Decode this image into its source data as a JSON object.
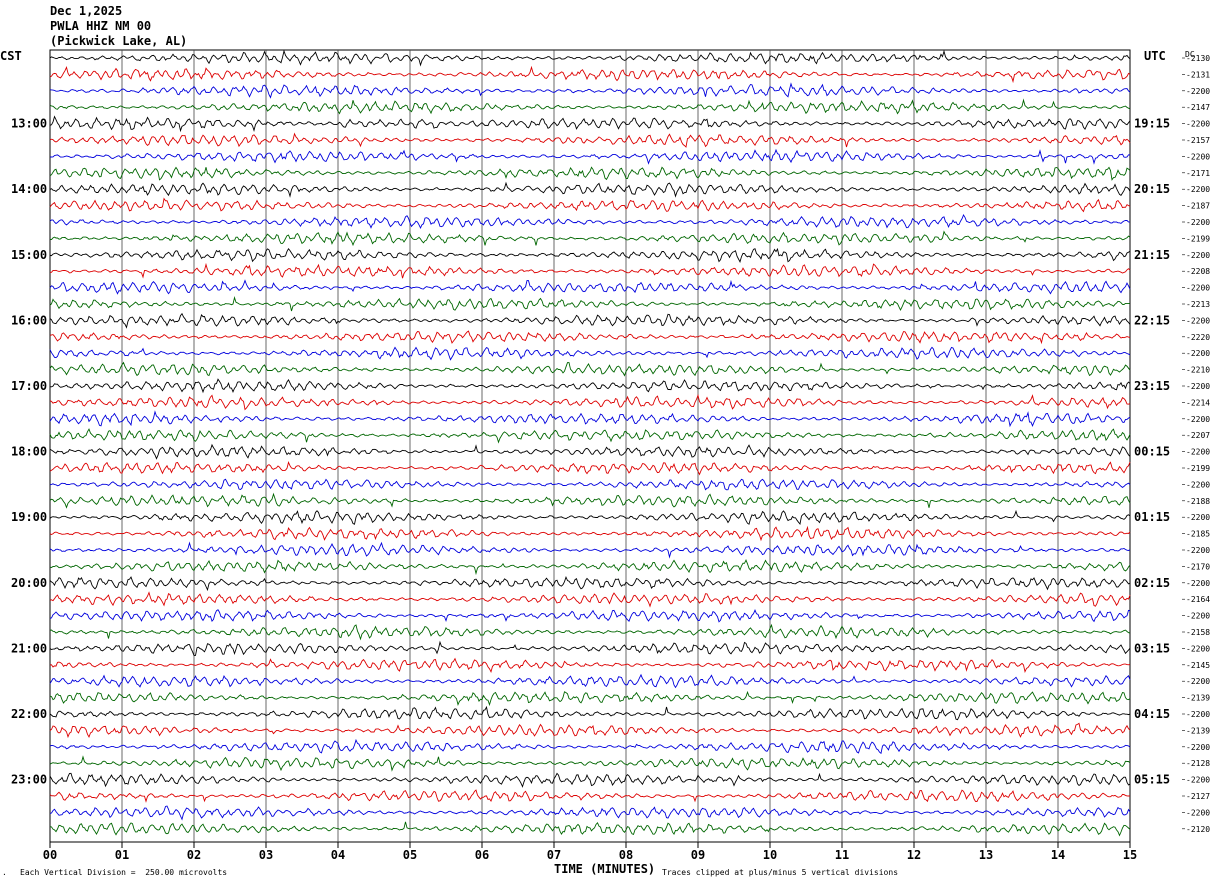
{
  "header": {
    "date": "Dec 1,2025",
    "station": "PWLA HHZ NM 00",
    "location": "(Pickwick Lake, AL)"
  },
  "left_timezone": "CST",
  "right_timezone": "UTC",
  "dc_label": "DC",
  "x_axis_title": "TIME (MINUTES)",
  "footer_left": "Each Vertical Division =  250.00 microvolts",
  "footer_right": "Traces clipped at plus/minus 5 vertical divisions",
  "colors": {
    "black": "#000000",
    "red": "#dd0000",
    "blue": "#0000dd",
    "green": "#006600",
    "grid": "#000000"
  },
  "chart_data": {
    "type": "line",
    "title": "PWLA HHZ NM 00 (Pickwick Lake, AL) Dec 1,2025",
    "xlabel": "TIME (MINUTES)",
    "ylabel": "",
    "x_ticks": [
      "00",
      "01",
      "02",
      "03",
      "04",
      "05",
      "06",
      "07",
      "08",
      "09",
      "10",
      "11",
      "12",
      "13",
      "14",
      "15"
    ],
    "xlim": [
      0,
      15
    ],
    "traces_per_hour": 4,
    "trace_count": 48,
    "color_cycle": [
      "black",
      "red",
      "blue",
      "green"
    ],
    "cst_hour_labels": [
      {
        "trace": 4,
        "label": "13:00"
      },
      {
        "trace": 8,
        "label": "14:00"
      },
      {
        "trace": 12,
        "label": "15:00"
      },
      {
        "trace": 16,
        "label": "16:00"
      },
      {
        "trace": 20,
        "label": "17:00"
      },
      {
        "trace": 24,
        "label": "18:00"
      },
      {
        "trace": 28,
        "label": "19:00"
      },
      {
        "trace": 32,
        "label": "20:00"
      },
      {
        "trace": 36,
        "label": "21:00"
      },
      {
        "trace": 40,
        "label": "22:00"
      },
      {
        "trace": 44,
        "label": "23:00"
      }
    ],
    "utc_labels": [
      {
        "trace": 4,
        "label": "19:15"
      },
      {
        "trace": 8,
        "label": "20:15"
      },
      {
        "trace": 12,
        "label": "21:15"
      },
      {
        "trace": 16,
        "label": "22:15"
      },
      {
        "trace": 20,
        "label": "23:15"
      },
      {
        "trace": 24,
        "label": "00:15"
      },
      {
        "trace": 28,
        "label": "01:15"
      },
      {
        "trace": 32,
        "label": "02:15"
      },
      {
        "trace": 36,
        "label": "03:15"
      },
      {
        "trace": 40,
        "label": "04:15"
      },
      {
        "trace": 44,
        "label": "05:15"
      }
    ],
    "dc_offsets": [
      "-2130",
      "-2131",
      "-2200",
      "-2147",
      "-2200",
      "-2157",
      "-2200",
      "-2171",
      "-2200",
      "-2187",
      "-2200",
      "-2199",
      "-2200",
      "-2208",
      "-2200",
      "-2213",
      "-2200",
      "-2220",
      "-2200",
      "-2210",
      "-2200",
      "-2214",
      "-2200",
      "-2207",
      "-2200",
      "-2199",
      "-2200",
      "-2188",
      "-2200",
      "-2185",
      "-2200",
      "-2170",
      "-2200",
      "-2164",
      "-2200",
      "-2158",
      "-2200",
      "-2145",
      "-2200",
      "-2139",
      "-2200",
      "-2139",
      "-2200",
      "-2128",
      "-2200",
      "-2127",
      "-2200",
      "-2120"
    ]
  }
}
